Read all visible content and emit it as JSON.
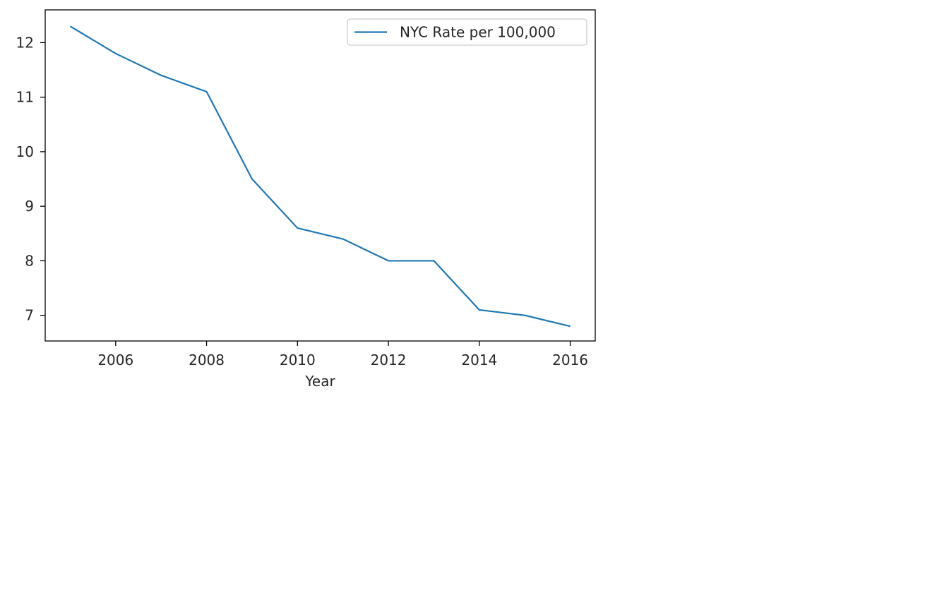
{
  "chart_data": {
    "type": "line",
    "title": "",
    "xlabel": "Year",
    "ylabel": "",
    "xlim": [
      2004.45,
      2016.55
    ],
    "ylim": [
      6.53,
      12.6
    ],
    "xticks": [
      2006,
      2008,
      2010,
      2012,
      2014,
      2016
    ],
    "yticks": [
      7,
      8,
      9,
      10,
      11,
      12
    ],
    "grid": false,
    "legend_position": "top-right",
    "series": [
      {
        "name": "NYC Rate per 100,000",
        "color": "#1f77b4",
        "x": [
          2005,
          2006,
          2007,
          2008,
          2009,
          2010,
          2011,
          2012,
          2013,
          2014,
          2015,
          2016
        ],
        "y": [
          12.3,
          11.8,
          11.4,
          11.1,
          9.5,
          8.6,
          8.4,
          8.0,
          8.0,
          7.1,
          7.0,
          6.8
        ]
      }
    ]
  }
}
